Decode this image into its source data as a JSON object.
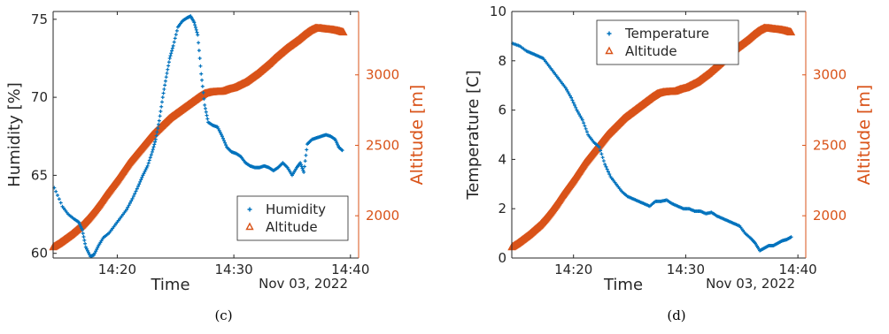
{
  "colors": {
    "left_series": "#0072BD",
    "right_series": "#D95319",
    "axis": "#262626"
  },
  "chart_data": [
    {
      "type": "scatter",
      "caption": "(c)",
      "xlabel": "Time",
      "xsub": "Nov 03, 2022",
      "xlim": [
        14.5,
        40.7
      ],
      "xticks": [
        20,
        30,
        40
      ],
      "xticklabels": [
        "14:20",
        "14:30",
        "14:40"
      ],
      "ylabel_left": "Humidity [%]",
      "ylim_left": [
        59.7,
        75.5
      ],
      "yticks_left": [
        60,
        65,
        70,
        75
      ],
      "ylabel_right": "Altitude [m]",
      "ylim_right": [
        1700,
        3450
      ],
      "yticks_right": [
        2000,
        2500,
        3000
      ],
      "legend": {
        "position": "bottom-right",
        "entries": [
          "Humidity",
          "Altitude"
        ]
      },
      "series": [
        {
          "name": "Humidity",
          "axis": "left",
          "marker": "plus",
          "x": [
            14.6,
            15.3,
            15.8,
            16.3,
            16.7,
            17.0,
            17.3,
            17.7,
            18.0,
            18.4,
            18.8,
            19.3,
            19.8,
            20.3,
            20.8,
            21.3,
            21.8,
            22.2,
            22.6,
            23.0,
            23.3,
            23.6,
            23.9,
            24.2,
            24.5,
            24.8,
            25.2,
            25.6,
            26.0,
            26.3,
            26.6,
            26.9,
            27.2,
            27.5,
            27.8,
            28.2,
            28.6,
            29.0,
            29.4,
            29.8,
            30.2,
            30.6,
            31.0,
            31.4,
            31.8,
            32.2,
            32.6,
            33.0,
            33.4,
            33.8,
            34.2,
            34.6,
            35.0,
            35.4,
            35.7,
            36.0,
            36.3,
            36.7,
            37.1,
            37.5,
            37.9,
            38.3,
            38.7,
            39.0,
            39.3
          ],
          "y": [
            64.2,
            63.0,
            62.5,
            62.2,
            62.0,
            61.5,
            60.4,
            59.8,
            59.9,
            60.5,
            61.0,
            61.3,
            61.8,
            62.3,
            62.8,
            63.5,
            64.3,
            65.0,
            65.6,
            66.5,
            67.3,
            68.5,
            70.0,
            71.3,
            72.5,
            73.3,
            74.5,
            74.9,
            75.1,
            75.2,
            74.8,
            74.0,
            71.5,
            69.5,
            68.4,
            68.2,
            68.1,
            67.5,
            66.8,
            66.5,
            66.4,
            66.2,
            65.8,
            65.6,
            65.5,
            65.5,
            65.6,
            65.5,
            65.3,
            65.5,
            65.8,
            65.5,
            65.0,
            65.5,
            65.8,
            65.2,
            67.0,
            67.3,
            67.4,
            67.5,
            67.6,
            67.5,
            67.3,
            66.8,
            66.6
          ]
        },
        {
          "name": "Altitude",
          "axis": "right",
          "marker": "triangle",
          "x": [
            14.5,
            15.0,
            15.5,
            16.0,
            16.5,
            17.0,
            17.5,
            18.0,
            18.5,
            19.0,
            19.5,
            20.0,
            20.5,
            21.0,
            21.5,
            22.0,
            22.5,
            23.0,
            23.5,
            24.0,
            24.5,
            25.0,
            25.5,
            26.0,
            26.5,
            27.0,
            27.5,
            28.0,
            28.5,
            29.0,
            29.5,
            30.0,
            30.5,
            31.0,
            31.5,
            32.0,
            32.5,
            33.0,
            33.5,
            34.0,
            34.5,
            35.0,
            35.5,
            36.0,
            36.5,
            37.0,
            37.5,
            38.0,
            38.5,
            39.0,
            39.4
          ],
          "y": [
            1775,
            1800,
            1830,
            1860,
            1895,
            1930,
            1975,
            2025,
            2080,
            2140,
            2195,
            2250,
            2310,
            2370,
            2420,
            2470,
            2520,
            2570,
            2610,
            2650,
            2690,
            2720,
            2750,
            2780,
            2810,
            2840,
            2865,
            2875,
            2878,
            2880,
            2895,
            2905,
            2925,
            2945,
            2975,
            3005,
            3040,
            3075,
            3115,
            3150,
            3185,
            3215,
            3245,
            3280,
            3310,
            3330,
            3328,
            3322,
            3318,
            3310,
            3300
          ]
        }
      ]
    },
    {
      "type": "scatter",
      "caption": "(d)",
      "xlabel": "Time",
      "xsub": "Nov 03, 2022",
      "xlim": [
        14.5,
        40.7
      ],
      "xticks": [
        20,
        30,
        40
      ],
      "xticklabels": [
        "14:20",
        "14:30",
        "14:40"
      ],
      "ylabel_left": "Temperature [C]",
      "ylim_left": [
        0,
        10
      ],
      "yticks_left": [
        0,
        2,
        4,
        6,
        8,
        10
      ],
      "ylabel_right": "Altitude [m]",
      "ylim_right": [
        1700,
        3450
      ],
      "yticks_right": [
        2000,
        2500,
        3000
      ],
      "legend": {
        "position": "top-center",
        "entries": [
          "Temperature",
          "Altitude"
        ]
      },
      "series": [
        {
          "name": "Temperature",
          "axis": "left",
          "marker": "plus",
          "x": [
            14.6,
            15.2,
            15.8,
            16.3,
            16.8,
            17.3,
            17.8,
            18.3,
            18.8,
            19.3,
            19.8,
            20.3,
            20.8,
            21.3,
            21.8,
            22.3,
            22.8,
            23.3,
            23.8,
            24.3,
            24.8,
            25.3,
            25.8,
            26.3,
            26.8,
            27.3,
            27.8,
            28.3,
            28.8,
            29.3,
            29.8,
            30.3,
            30.8,
            31.3,
            31.8,
            32.3,
            32.8,
            33.3,
            33.8,
            34.3,
            34.8,
            35.3,
            35.8,
            36.2,
            36.6,
            37.0,
            37.4,
            37.8,
            38.2,
            38.6,
            39.0,
            39.4
          ],
          "y": [
            8.7,
            8.6,
            8.4,
            8.3,
            8.2,
            8.1,
            7.8,
            7.5,
            7.2,
            6.9,
            6.5,
            6.0,
            5.6,
            5.0,
            4.7,
            4.5,
            3.8,
            3.3,
            3.0,
            2.7,
            2.5,
            2.4,
            2.3,
            2.2,
            2.1,
            2.3,
            2.3,
            2.35,
            2.2,
            2.1,
            2.0,
            2.0,
            1.9,
            1.9,
            1.8,
            1.85,
            1.7,
            1.6,
            1.5,
            1.4,
            1.3,
            1.0,
            0.8,
            0.6,
            0.3,
            0.4,
            0.5,
            0.5,
            0.6,
            0.7,
            0.75,
            0.85
          ]
        },
        {
          "name": "Altitude",
          "axis": "right",
          "marker": "triangle",
          "x": [
            14.5,
            15.0,
            15.5,
            16.0,
            16.5,
            17.0,
            17.5,
            18.0,
            18.5,
            19.0,
            19.5,
            20.0,
            20.5,
            21.0,
            21.5,
            22.0,
            22.5,
            23.0,
            23.5,
            24.0,
            24.5,
            25.0,
            25.5,
            26.0,
            26.5,
            27.0,
            27.5,
            28.0,
            28.5,
            29.0,
            29.5,
            30.0,
            30.5,
            31.0,
            31.5,
            32.0,
            32.5,
            33.0,
            33.5,
            34.0,
            34.5,
            35.0,
            35.5,
            36.0,
            36.5,
            37.0,
            37.5,
            38.0,
            38.5,
            39.0,
            39.4
          ],
          "y": [
            1775,
            1800,
            1830,
            1860,
            1895,
            1930,
            1975,
            2025,
            2080,
            2140,
            2195,
            2250,
            2310,
            2370,
            2420,
            2470,
            2520,
            2570,
            2610,
            2650,
            2690,
            2720,
            2750,
            2780,
            2810,
            2840,
            2865,
            2875,
            2878,
            2880,
            2895,
            2905,
            2925,
            2945,
            2975,
            3005,
            3040,
            3075,
            3115,
            3150,
            3185,
            3215,
            3245,
            3280,
            3310,
            3330,
            3328,
            3322,
            3318,
            3310,
            3300
          ]
        }
      ]
    }
  ]
}
